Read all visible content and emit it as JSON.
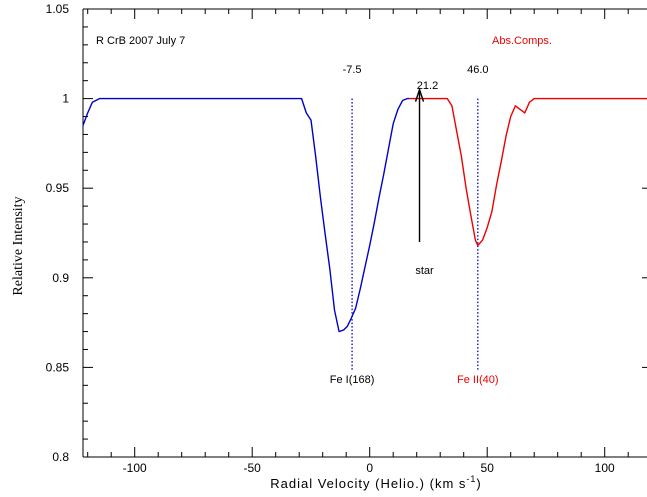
{
  "chart_data": {
    "type": "line",
    "title": "R CrB 2007 July 7",
    "legend_text": "Abs.Comps.",
    "xlabel": "Radial Velocity (Helio.) (km s",
    "xlabel_sup": "-1",
    "xlabel_end": ")",
    "ylabel": "Relative Intensity",
    "xlim": [
      -122,
      118
    ],
    "ylim": [
      0.8,
      1.05
    ],
    "x_ticks": [
      -100,
      -50,
      0,
      50,
      100
    ],
    "x_tick_labels": [
      "-100",
      "-50",
      "0",
      "50",
      "100"
    ],
    "y_ticks": [
      0.8,
      0.85,
      0.9,
      0.95,
      1,
      1.05
    ],
    "y_tick_labels": [
      "0.8",
      "0.85",
      "0.9",
      "0.95",
      "1",
      "1.05"
    ],
    "grid": false,
    "colors": {
      "series1": "#0000cc",
      "series2": "#ee0000",
      "marker": "#000000",
      "axes": "#000000"
    },
    "series": [
      {
        "color": "#0000cc",
        "x": [
          -122,
          -120,
          -118,
          -115,
          -110,
          -100,
          -80,
          -60,
          -40,
          -29,
          -27,
          -25,
          -23,
          -21,
          -19,
          -17,
          -15,
          -13,
          -11,
          -9.5,
          -8,
          -6,
          -4,
          -2,
          0,
          2,
          4,
          6,
          8,
          10,
          12,
          14,
          16,
          17
        ],
        "y": [
          0.985,
          0.992,
          0.998,
          1.0,
          1.0,
          1.0,
          1.0,
          1.0,
          1.0,
          1.0,
          0.992,
          0.988,
          0.968,
          0.945,
          0.925,
          0.905,
          0.882,
          0.87,
          0.871,
          0.873,
          0.877,
          0.883,
          0.894,
          0.906,
          0.918,
          0.931,
          0.945,
          0.958,
          0.972,
          0.986,
          0.994,
          0.999,
          1.0,
          1.0
        ]
      },
      {
        "color": "#ee0000",
        "x": [
          17,
          20,
          25,
          30,
          33,
          35,
          37,
          39,
          41,
          43,
          45,
          46,
          48,
          50,
          52,
          54,
          56,
          58,
          60,
          62,
          64,
          66,
          68,
          70,
          80,
          90,
          100,
          110,
          118
        ],
        "y": [
          1.0,
          1.0,
          1.0,
          1.0,
          1.0,
          0.996,
          0.982,
          0.968,
          0.95,
          0.935,
          0.921,
          0.918,
          0.921,
          0.928,
          0.937,
          0.952,
          0.965,
          0.979,
          0.99,
          0.996,
          0.994,
          0.992,
          0.998,
          1.0,
          1.0,
          1.0,
          1.0,
          1.0,
          1.0
        ]
      }
    ],
    "vlines": [
      {
        "x": -7.5,
        "label": "-7.5",
        "bottom_label": "Fe I(168)",
        "color": "#0000cc",
        "label_color": "#000000"
      },
      {
        "x": 46.0,
        "label": "46.0",
        "bottom_label": "Fe II(40)",
        "color": "#0000cc",
        "label_color": "#ee0000"
      }
    ],
    "star_marker": {
      "x": 21.2,
      "label": "21.2",
      "bottom_label": "star",
      "y_from": 0.92,
      "y_to": 1.005
    }
  }
}
